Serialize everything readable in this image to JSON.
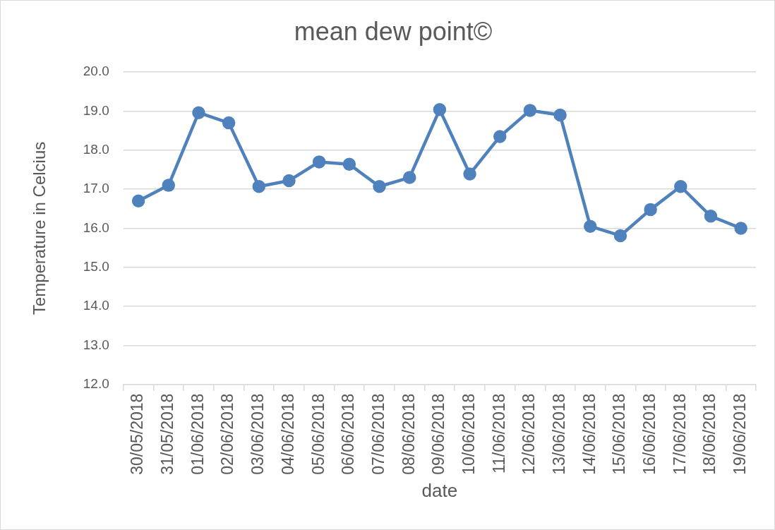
{
  "chart_data": {
    "type": "line",
    "title": "mean dew point©",
    "xlabel": "date",
    "ylabel": "Temperature in Celcius",
    "categories": [
      "30/05/2018",
      "31/05/2018",
      "01/06/2018",
      "02/06/2018",
      "03/06/2018",
      "04/06/2018",
      "05/06/2018",
      "06/06/2018",
      "07/06/2018",
      "08/06/2018",
      "09/06/2018",
      "10/06/2018",
      "11/06/2018",
      "12/06/2018",
      "13/06/2018",
      "14/06/2018",
      "15/06/2018",
      "16/06/2018",
      "17/06/2018",
      "18/06/2018",
      "19/06/2018"
    ],
    "series": [
      {
        "color": "#4f81bd",
        "values": [
          16.7,
          17.1,
          18.96,
          18.7,
          17.07,
          17.22,
          17.7,
          17.64,
          17.07,
          17.3,
          19.04,
          17.39,
          18.35,
          19.02,
          18.9,
          16.05,
          15.81,
          16.48,
          17.07,
          16.31,
          16.0
        ]
      }
    ],
    "ylim": [
      12,
      20
    ],
    "yticks": [
      {
        "value": 12,
        "label": "12.0"
      },
      {
        "value": 13,
        "label": "13.0"
      },
      {
        "value": 14,
        "label": "14.0"
      },
      {
        "value": 15,
        "label": "15.0"
      },
      {
        "value": 16,
        "label": "16.0"
      },
      {
        "value": 17,
        "label": "17.0"
      },
      {
        "value": 18,
        "label": "18.0"
      },
      {
        "value": 19,
        "label": "19.0"
      },
      {
        "value": 20,
        "label": "20.0"
      }
    ],
    "grid": "y",
    "legend": false,
    "marker": "circle",
    "line_style": "solid"
  }
}
